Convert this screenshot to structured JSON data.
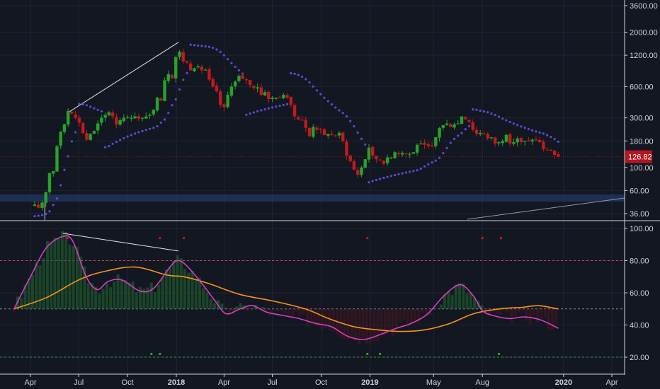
{
  "chart_data": {
    "type": "candlestick",
    "title": "",
    "price_panel": {
      "scale": "log",
      "ylim": [
        33,
        3800
      ],
      "y_ticks": [
        "3600.00",
        "2000.00",
        "1200.00",
        "600.00",
        "300.00",
        "180.00",
        "100.00",
        "60.00",
        "36.00"
      ],
      "y_tick_values": [
        3600,
        2000,
        1200,
        600,
        300,
        180,
        100,
        60,
        36
      ],
      "last_price": "126.82",
      "last_price_value": 126.82,
      "support_zone": [
        47,
        55
      ],
      "weekly_close": [
        [
          "2017-04-02",
          42
        ],
        [
          "2017-04-09",
          44
        ],
        [
          "2017-04-16",
          41
        ],
        [
          "2017-04-23",
          46
        ],
        [
          "2017-04-30",
          58
        ],
        [
          "2017-05-07",
          88
        ],
        [
          "2017-05-14",
          92
        ],
        [
          "2017-05-21",
          160
        ],
        [
          "2017-05-28",
          220
        ],
        [
          "2017-06-04",
          260
        ],
        [
          "2017-06-11",
          350
        ],
        [
          "2017-06-18",
          330
        ],
        [
          "2017-06-25",
          300
        ],
        [
          "2017-07-02",
          270
        ],
        [
          "2017-07-09",
          215
        ],
        [
          "2017-07-16",
          185
        ],
        [
          "2017-07-23",
          210
        ],
        [
          "2017-07-30",
          225
        ],
        [
          "2017-08-06",
          265
        ],
        [
          "2017-08-13",
          300
        ],
        [
          "2017-08-20",
          320
        ],
        [
          "2017-08-27",
          340
        ],
        [
          "2017-09-03",
          310
        ],
        [
          "2017-09-10",
          260
        ],
        [
          "2017-09-17",
          285
        ],
        [
          "2017-09-24",
          300
        ],
        [
          "2017-10-01",
          305
        ],
        [
          "2017-10-08",
          300
        ],
        [
          "2017-10-15",
          310
        ],
        [
          "2017-10-22",
          295
        ],
        [
          "2017-10-29",
          300
        ],
        [
          "2017-11-05",
          310
        ],
        [
          "2017-11-12",
          320
        ],
        [
          "2017-11-19",
          360
        ],
        [
          "2017-11-26",
          470
        ],
        [
          "2017-12-03",
          440
        ],
        [
          "2017-12-10",
          690
        ],
        [
          "2017-12-17",
          790
        ],
        [
          "2017-12-24",
          720
        ],
        [
          "2017-12-31",
          1150
        ],
        [
          "2018-01-07",
          1300
        ],
        [
          "2018-01-14",
          1050
        ],
        [
          "2018-01-21",
          1020
        ],
        [
          "2018-01-28",
          860
        ],
        [
          "2018-02-04",
          900
        ],
        [
          "2018-02-11",
          940
        ],
        [
          "2018-02-18",
          860
        ],
        [
          "2018-02-25",
          870
        ],
        [
          "2018-03-04",
          700
        ],
        [
          "2018-03-11",
          600
        ],
        [
          "2018-03-18",
          540
        ],
        [
          "2018-03-25",
          400
        ],
        [
          "2018-04-01",
          380
        ],
        [
          "2018-04-08",
          500
        ],
        [
          "2018-04-15",
          600
        ],
        [
          "2018-04-22",
          670
        ],
        [
          "2018-04-29",
          760
        ],
        [
          "2018-05-06",
          710
        ],
        [
          "2018-05-13",
          690
        ],
        [
          "2018-05-20",
          620
        ],
        [
          "2018-05-27",
          580
        ],
        [
          "2018-06-03",
          590
        ],
        [
          "2018-06-10",
          500
        ],
        [
          "2018-06-17",
          530
        ],
        [
          "2018-06-24",
          455
        ],
        [
          "2018-07-01",
          470
        ],
        [
          "2018-07-08",
          465
        ],
        [
          "2018-07-15",
          470
        ],
        [
          "2018-07-22",
          500
        ],
        [
          "2018-07-29",
          470
        ],
        [
          "2018-08-05",
          400
        ],
        [
          "2018-08-12",
          310
        ],
        [
          "2018-08-19",
          290
        ],
        [
          "2018-08-26",
          285
        ],
        [
          "2018-09-02",
          240
        ],
        [
          "2018-09-09",
          200
        ],
        [
          "2018-09-16",
          245
        ],
        [
          "2018-09-23",
          230
        ],
        [
          "2018-09-30",
          230
        ],
        [
          "2018-10-07",
          205
        ],
        [
          "2018-10-14",
          210
        ],
        [
          "2018-10-21",
          205
        ],
        [
          "2018-10-28",
          200
        ],
        [
          "2018-11-04",
          215
        ],
        [
          "2018-11-11",
          180
        ],
        [
          "2018-11-18",
          130
        ],
        [
          "2018-11-25",
          115
        ],
        [
          "2018-12-02",
          95
        ],
        [
          "2018-12-09",
          85
        ],
        [
          "2018-12-16",
          100
        ],
        [
          "2018-12-23",
          120
        ],
        [
          "2018-12-30",
          155
        ],
        [
          "2019-01-06",
          130
        ],
        [
          "2019-01-13",
          120
        ],
        [
          "2019-01-20",
          118
        ],
        [
          "2019-01-27",
          108
        ],
        [
          "2019-02-03",
          125
        ],
        [
          "2019-02-10",
          125
        ],
        [
          "2019-02-17",
          140
        ],
        [
          "2019-02-24",
          135
        ],
        [
          "2019-03-03",
          138
        ],
        [
          "2019-03-10",
          135
        ],
        [
          "2019-03-17",
          135
        ],
        [
          "2019-03-24",
          140
        ],
        [
          "2019-03-31",
          165
        ],
        [
          "2019-04-07",
          170
        ],
        [
          "2019-04-14",
          165
        ],
        [
          "2019-04-21",
          160
        ],
        [
          "2019-04-28",
          160
        ],
        [
          "2019-05-05",
          195
        ],
        [
          "2019-05-12",
          240
        ],
        [
          "2019-05-19",
          255
        ],
        [
          "2019-05-26",
          265
        ],
        [
          "2019-06-02",
          245
        ],
        [
          "2019-06-09",
          260
        ],
        [
          "2019-06-16",
          265
        ],
        [
          "2019-06-23",
          310
        ],
        [
          "2019-06-30",
          290
        ],
        [
          "2019-07-07",
          275
        ],
        [
          "2019-07-14",
          230
        ],
        [
          "2019-07-21",
          210
        ],
        [
          "2019-07-28",
          215
        ],
        [
          "2019-08-04",
          210
        ],
        [
          "2019-08-11",
          190
        ],
        [
          "2019-08-18",
          195
        ],
        [
          "2019-08-25",
          170
        ],
        [
          "2019-09-01",
          175
        ],
        [
          "2019-09-08",
          180
        ],
        [
          "2019-09-15",
          205
        ],
        [
          "2019-09-22",
          170
        ],
        [
          "2019-09-29",
          175
        ],
        [
          "2019-10-06",
          190
        ],
        [
          "2019-10-13",
          175
        ],
        [
          "2019-10-20",
          180
        ],
        [
          "2019-10-27",
          180
        ],
        [
          "2019-11-03",
          185
        ],
        [
          "2019-11-10",
          185
        ],
        [
          "2019-11-17",
          175
        ],
        [
          "2019-11-24",
          150
        ],
        [
          "2019-12-01",
          148
        ],
        [
          "2019-12-08",
          145
        ],
        [
          "2019-12-15",
          132
        ],
        [
          "2019-12-22",
          127
        ]
      ]
    },
    "indicator_panel": {
      "ylim": [
        12,
        102
      ],
      "y_ticks": [
        "100.00",
        "80.00",
        "60.00",
        "40.00",
        "20.00"
      ],
      "y_tick_values": [
        100,
        80,
        60,
        40,
        20
      ],
      "levels": [
        80,
        50,
        20
      ],
      "fast_series": [
        [
          "2017-03-01",
          50
        ],
        [
          "2017-04-01",
          70
        ],
        [
          "2017-05-01",
          88
        ],
        [
          "2017-06-01",
          95
        ],
        [
          "2017-06-20",
          92
        ],
        [
          "2017-07-15",
          70
        ],
        [
          "2017-08-05",
          62
        ],
        [
          "2017-08-25",
          67
        ],
        [
          "2017-09-20",
          68
        ],
        [
          "2017-10-25",
          61
        ],
        [
          "2017-11-20",
          63
        ],
        [
          "2017-12-20",
          76
        ],
        [
          "2018-01-03",
          80
        ],
        [
          "2018-01-20",
          77
        ],
        [
          "2018-02-20",
          65
        ],
        [
          "2018-03-15",
          55
        ],
        [
          "2018-04-05",
          47
        ],
        [
          "2018-05-01",
          50
        ],
        [
          "2018-05-25",
          52
        ],
        [
          "2018-06-20",
          48
        ],
        [
          "2018-07-20",
          46
        ],
        [
          "2018-08-20",
          44
        ],
        [
          "2018-09-20",
          41
        ],
        [
          "2018-10-20",
          39
        ],
        [
          "2018-11-20",
          33
        ],
        [
          "2018-12-20",
          31
        ],
        [
          "2019-01-20",
          34
        ],
        [
          "2019-02-20",
          38
        ],
        [
          "2019-03-20",
          41
        ],
        [
          "2019-04-20",
          47
        ],
        [
          "2019-05-20",
          58
        ],
        [
          "2019-06-20",
          65
        ],
        [
          "2019-07-15",
          58
        ],
        [
          "2019-08-01",
          49
        ],
        [
          "2019-08-20",
          46
        ],
        [
          "2019-09-20",
          44
        ],
        [
          "2019-10-20",
          45
        ],
        [
          "2019-11-20",
          43
        ],
        [
          "2019-12-22",
          38
        ]
      ],
      "slow_series": [
        [
          "2017-03-01",
          50
        ],
        [
          "2017-05-01",
          57
        ],
        [
          "2017-07-01",
          68
        ],
        [
          "2017-08-15",
          73
        ],
        [
          "2017-10-15",
          76
        ],
        [
          "2017-12-15",
          71
        ],
        [
          "2018-01-15",
          70
        ],
        [
          "2018-03-01",
          66
        ],
        [
          "2018-05-01",
          59
        ],
        [
          "2018-07-01",
          55
        ],
        [
          "2018-09-01",
          50
        ],
        [
          "2018-10-15",
          44
        ],
        [
          "2018-12-01",
          39
        ],
        [
          "2019-01-15",
          37
        ],
        [
          "2019-03-01",
          36
        ],
        [
          "2019-04-15",
          37
        ],
        [
          "2019-06-01",
          41
        ],
        [
          "2019-07-15",
          47
        ],
        [
          "2019-09-01",
          50
        ],
        [
          "2019-10-15",
          51
        ],
        [
          "2019-11-15",
          52
        ],
        [
          "2019-12-22",
          50
        ]
      ]
    },
    "x_axis": {
      "ticks": [
        {
          "label": "Apr",
          "date": "2017-04-01",
          "bold": false
        },
        {
          "label": "Jul",
          "date": "2017-07-01",
          "bold": false
        },
        {
          "label": "Oct",
          "date": "2017-10-01",
          "bold": false
        },
        {
          "label": "2018",
          "date": "2018-01-01",
          "bold": true
        },
        {
          "label": "Apr",
          "date": "2018-04-01",
          "bold": false
        },
        {
          "label": "Jul",
          "date": "2018-07-01",
          "bold": false
        },
        {
          "label": "Oct",
          "date": "2018-10-01",
          "bold": false
        },
        {
          "label": "2019",
          "date": "2019-01-01",
          "bold": true
        },
        {
          "label": "May",
          "date": "2019-05-01",
          "bold": false
        },
        {
          "label": "Aug",
          "date": "2019-08-01",
          "bold": false
        },
        {
          "label": "2020",
          "date": "2020-01-01",
          "bold": true
        },
        {
          "label": "Apr",
          "date": "2020-04-01",
          "bold": false
        }
      ]
    },
    "grid": true,
    "colors": {
      "background": "#131722",
      "up": "#26a32a",
      "down": "#c11b1b",
      "sar": "#5b4bd6",
      "fast_line": "#d63fbf",
      "slow_line": "#f7931a",
      "overbought_line": "#c44a4a",
      "oversold_line": "#2f9a4a",
      "support_zone": "#213a66",
      "price_tag": "#b0171f"
    }
  }
}
